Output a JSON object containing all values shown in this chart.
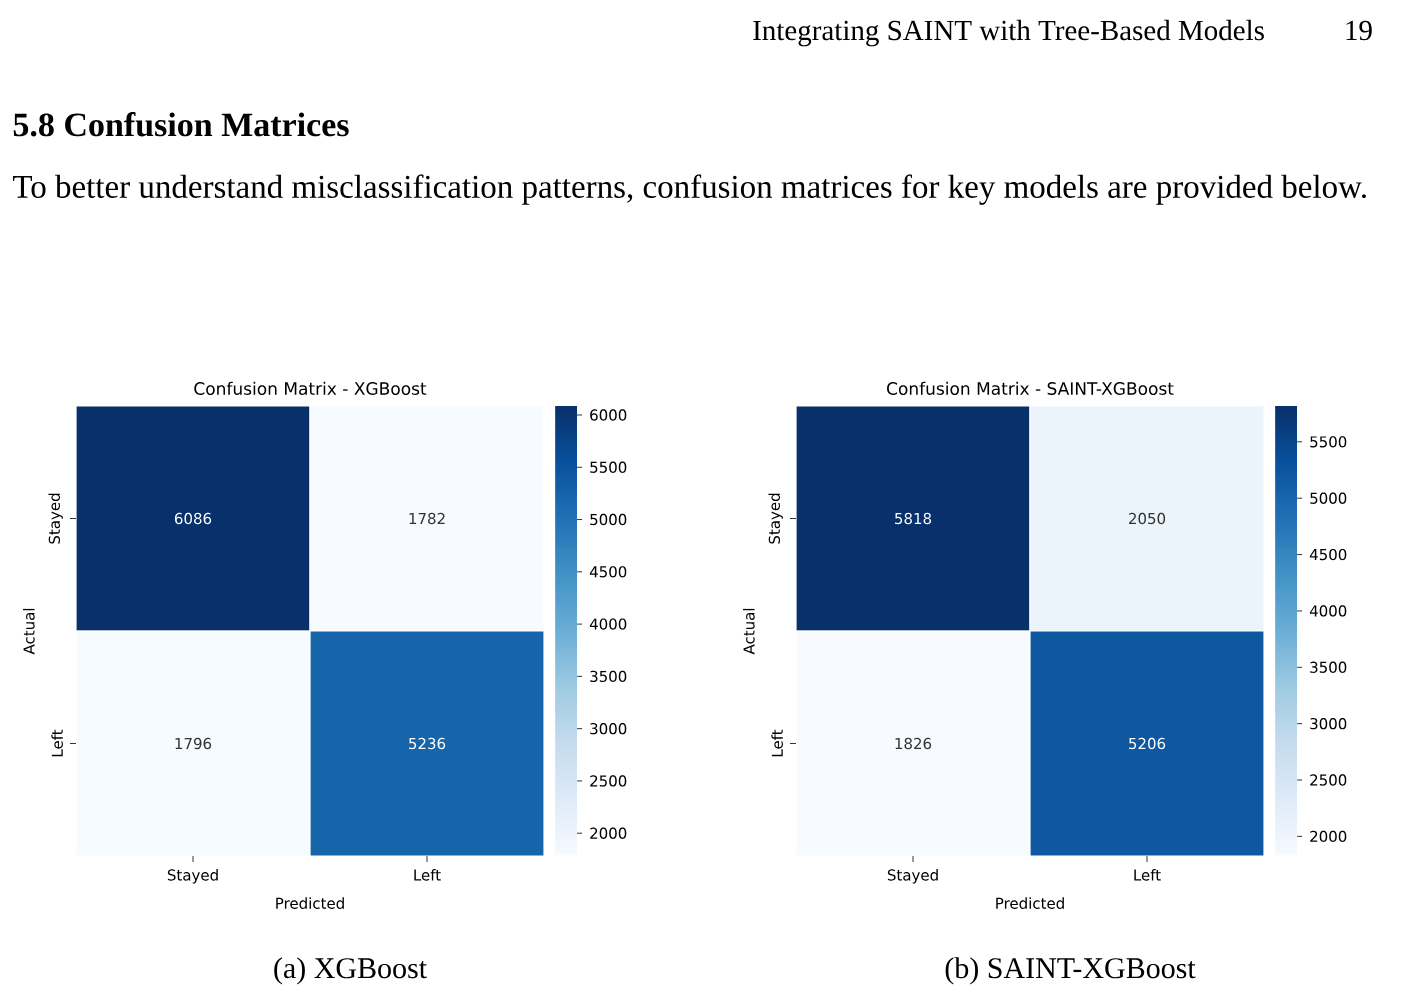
{
  "chart_data": [
    {
      "type": "heatmap",
      "title": "Confusion Matrix - XGBoost",
      "xlabel": "Predicted",
      "ylabel": "Actual",
      "categories": [
        "Stayed",
        "Left"
      ],
      "y_categories": [
        "Stayed",
        "Left"
      ],
      "cells": [
        [
          6086,
          1782
        ],
        [
          1796,
          5236
        ]
      ],
      "data_labels": true,
      "clim": [
        1782,
        6086
      ],
      "cticks": [
        2000,
        2500,
        3000,
        3500,
        4000,
        4500,
        5000,
        5500,
        6000
      ],
      "annotations": [
        "Integrating SAINT with Tree-Based Models",
        "19",
        "5.8    Confusion Matrices",
        "To better understand misclassification patterns, confusion matrices for key models are provided below.",
        "(a) XGBoost"
      ]
    },
    {
      "type": "heatmap",
      "title": "Confusion Matrix - SAINT-XGBoost",
      "xlabel": "Predicted",
      "ylabel": "Actual",
      "categories": [
        "Stayed",
        "Left"
      ],
      "y_categories": [
        "Stayed",
        "Left"
      ],
      "cells": [
        [
          5818,
          2050
        ],
        [
          1826,
          5206
        ]
      ],
      "data_labels": true,
      "clim": [
        1826,
        5818
      ],
      "cticks": [
        2000,
        2500,
        3000,
        3500,
        4000,
        4500,
        5000,
        5500
      ],
      "annotations": [
        "(b) SAINT-XGBoost"
      ]
    }
  ]
}
